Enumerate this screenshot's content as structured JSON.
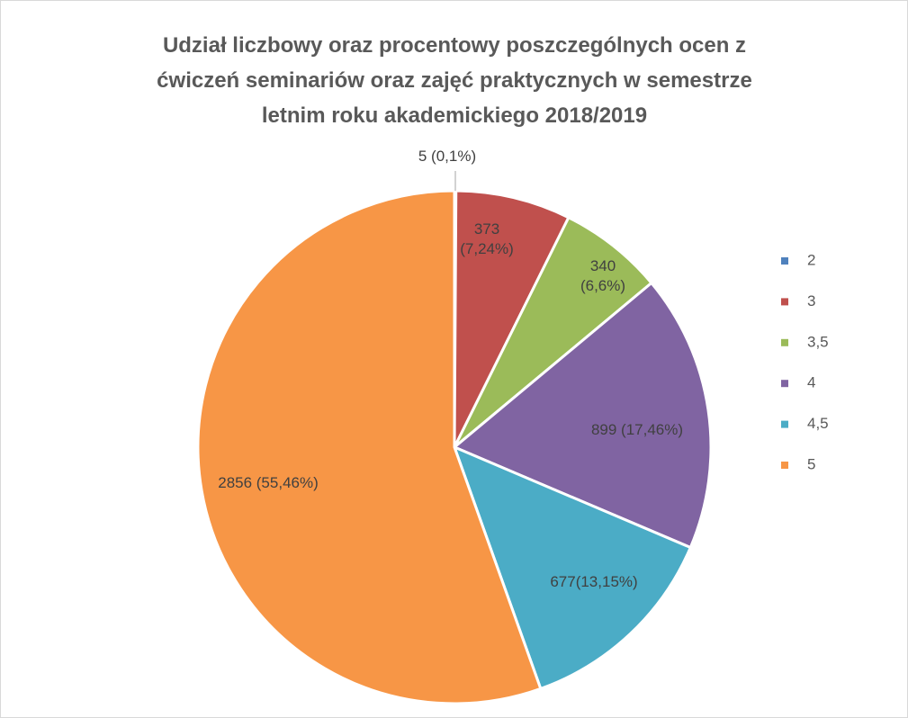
{
  "chart_data": {
    "type": "pie",
    "title": [
      "Udział liczbowy oraz procentowy poszczególnych ocen z",
      "ćwiczeń  seminariów  oraz zajęć praktycznych w semestrze",
      "letnim roku akademickiego 2018/2019"
    ],
    "categories": [
      "2",
      "3",
      "3,5",
      "4",
      "4,5",
      "5"
    ],
    "values": [
      5,
      373,
      340,
      899,
      677,
      2856
    ],
    "value_labels": [
      "5 (0,1%)",
      "373 (7,24%)",
      "340 (6,6%)",
      "899 (17,46%)",
      "677(13,15%)",
      "2856 (55,46%)"
    ],
    "colors": [
      "#4f81bd",
      "#c0504d",
      "#9bbb59",
      "#8064a2",
      "#4bacc6",
      "#f79646"
    ],
    "legend": "right"
  }
}
